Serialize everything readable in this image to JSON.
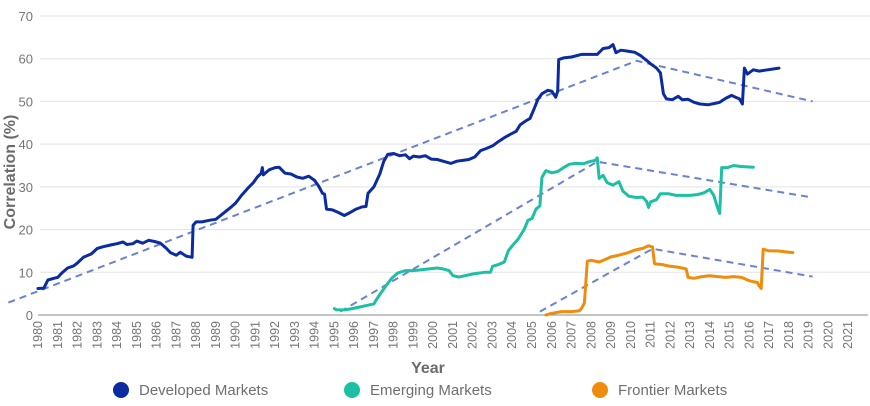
{
  "chart_data": {
    "type": "line",
    "title": "",
    "xlabel": "Year",
    "ylabel": "Correlation (%)",
    "xlim": [
      1980,
      2022
    ],
    "ylim": [
      0,
      70
    ],
    "yticks": [
      0,
      10,
      20,
      30,
      40,
      50,
      60,
      70
    ],
    "xticks": [
      "1980",
      "1981",
      "1982",
      "1983",
      "1984",
      "1985",
      "1986",
      "1987",
      "1988",
      "1989",
      "1990",
      "1991",
      "1992",
      "1993",
      "1994",
      "1995",
      "1996",
      "1997",
      "1998",
      "1999",
      "2000",
      "2001",
      "2002",
      "2003",
      "2004",
      "2005",
      "2006",
      "2007",
      "2008",
      "2009",
      "2010",
      "2011",
      "2012",
      "2013",
      "2014",
      "2015",
      "2016",
      "2017",
      "2018",
      "2019",
      "2020",
      "2021"
    ],
    "grid": true,
    "legend_position": "bottom",
    "series": [
      {
        "name": "Developed Markets",
        "color": "#0b2ba0",
        "points": [
          [
            1980.0,
            6.2
          ],
          [
            1980.3,
            6.3
          ],
          [
            1980.5,
            8.2
          ],
          [
            1980.8,
            8.6
          ],
          [
            1981.0,
            8.8
          ],
          [
            1981.2,
            9.8
          ],
          [
            1981.5,
            11.0
          ],
          [
            1981.8,
            11.5
          ],
          [
            1982.0,
            12.2
          ],
          [
            1982.3,
            13.5
          ],
          [
            1982.7,
            14.3
          ],
          [
            1983.0,
            15.6
          ],
          [
            1983.3,
            16.0
          ],
          [
            1983.7,
            16.4
          ],
          [
            1984.0,
            16.7
          ],
          [
            1984.3,
            17.1
          ],
          [
            1984.5,
            16.5
          ],
          [
            1984.8,
            16.7
          ],
          [
            1985.0,
            17.3
          ],
          [
            1985.3,
            16.8
          ],
          [
            1985.6,
            17.5
          ],
          [
            1985.9,
            17.2
          ],
          [
            1986.2,
            16.8
          ],
          [
            1986.5,
            15.6
          ],
          [
            1986.7,
            14.6
          ],
          [
            1987.0,
            14.0
          ],
          [
            1987.2,
            14.7
          ],
          [
            1987.5,
            13.8
          ],
          [
            1987.8,
            13.5
          ],
          [
            1987.85,
            21.0
          ],
          [
            1988.0,
            21.8
          ],
          [
            1988.3,
            21.8
          ],
          [
            1988.7,
            22.2
          ],
          [
            1989.0,
            22.4
          ],
          [
            1989.3,
            23.5
          ],
          [
            1989.7,
            25.0
          ],
          [
            1990.0,
            26.2
          ],
          [
            1990.3,
            28.0
          ],
          [
            1990.6,
            29.6
          ],
          [
            1990.9,
            31.0
          ],
          [
            1991.1,
            32.3
          ],
          [
            1991.3,
            33.2
          ],
          [
            1991.35,
            34.5
          ],
          [
            1991.4,
            32.8
          ],
          [
            1991.7,
            34.0
          ],
          [
            1992.0,
            34.5
          ],
          [
            1992.2,
            34.6
          ],
          [
            1992.5,
            33.2
          ],
          [
            1992.8,
            33.0
          ],
          [
            1993.1,
            32.3
          ],
          [
            1993.4,
            32.0
          ],
          [
            1993.7,
            32.5
          ],
          [
            1994.0,
            31.5
          ],
          [
            1994.2,
            30.2
          ],
          [
            1994.4,
            28.5
          ],
          [
            1994.5,
            28.3
          ],
          [
            1994.6,
            24.8
          ],
          [
            1994.9,
            24.6
          ],
          [
            1995.2,
            24.0
          ],
          [
            1995.5,
            23.3
          ],
          [
            1995.8,
            24.0
          ],
          [
            1996.1,
            24.8
          ],
          [
            1996.4,
            25.3
          ],
          [
            1996.6,
            25.4
          ],
          [
            1996.7,
            28.5
          ],
          [
            1997.0,
            30.0
          ],
          [
            1997.3,
            33.0
          ],
          [
            1997.5,
            36.0
          ],
          [
            1997.7,
            37.6
          ],
          [
            1998.0,
            37.8
          ],
          [
            1998.3,
            37.3
          ],
          [
            1998.6,
            37.5
          ],
          [
            1998.8,
            36.6
          ],
          [
            1999.0,
            37.2
          ],
          [
            1999.3,
            37.0
          ],
          [
            1999.6,
            37.3
          ],
          [
            1999.9,
            36.5
          ],
          [
            2000.2,
            36.4
          ],
          [
            2000.5,
            36.0
          ],
          [
            2000.9,
            35.5
          ],
          [
            2001.2,
            36.0
          ],
          [
            2001.5,
            36.2
          ],
          [
            2001.8,
            36.4
          ],
          [
            2002.1,
            37.0
          ],
          [
            2002.4,
            38.5
          ],
          [
            2002.7,
            39.0
          ],
          [
            2003.0,
            39.6
          ],
          [
            2003.3,
            40.6
          ],
          [
            2003.6,
            41.5
          ],
          [
            2003.9,
            42.3
          ],
          [
            2004.2,
            43.0
          ],
          [
            2004.4,
            44.5
          ],
          [
            2004.7,
            45.5
          ],
          [
            2004.9,
            46.0
          ],
          [
            2005.1,
            48.2
          ],
          [
            2005.3,
            50.5
          ],
          [
            2005.5,
            51.8
          ],
          [
            2005.8,
            52.6
          ],
          [
            2006.0,
            52.4
          ],
          [
            2006.2,
            51.0
          ],
          [
            2006.3,
            52.4
          ],
          [
            2006.35,
            59.8
          ],
          [
            2006.6,
            60.2
          ],
          [
            2007.0,
            60.4
          ],
          [
            2007.5,
            61.0
          ],
          [
            2008.0,
            61.0
          ],
          [
            2008.3,
            61.0
          ],
          [
            2008.6,
            62.4
          ],
          [
            2008.9,
            62.6
          ],
          [
            2009.1,
            63.3
          ],
          [
            2009.25,
            61.4
          ],
          [
            2009.5,
            62.0
          ],
          [
            2009.8,
            61.8
          ],
          [
            2010.2,
            61.5
          ],
          [
            2010.5,
            60.7
          ],
          [
            2010.8,
            59.6
          ],
          [
            2011.0,
            58.8
          ],
          [
            2011.3,
            57.8
          ],
          [
            2011.5,
            56.7
          ],
          [
            2011.65,
            51.8
          ],
          [
            2011.8,
            50.6
          ],
          [
            2012.1,
            50.4
          ],
          [
            2012.4,
            51.2
          ],
          [
            2012.6,
            50.4
          ],
          [
            2012.9,
            50.5
          ],
          [
            2013.2,
            49.8
          ],
          [
            2013.5,
            49.4
          ],
          [
            2013.9,
            49.2
          ],
          [
            2014.2,
            49.5
          ],
          [
            2014.5,
            49.8
          ],
          [
            2014.8,
            50.7
          ],
          [
            2015.1,
            51.4
          ],
          [
            2015.3,
            51.0
          ],
          [
            2015.5,
            50.6
          ],
          [
            2015.65,
            49.4
          ],
          [
            2015.75,
            57.8
          ],
          [
            2015.9,
            56.4
          ],
          [
            2016.2,
            57.4
          ],
          [
            2016.5,
            57.1
          ],
          [
            2016.8,
            57.3
          ],
          [
            2017.2,
            57.6
          ],
          [
            2017.5,
            57.8
          ]
        ]
      },
      {
        "name": "Emerging Markets",
        "color": "#1dbfa5",
        "points": [
          [
            1995.0,
            1.5
          ],
          [
            1995.1,
            1.2
          ],
          [
            1995.5,
            1.2
          ],
          [
            1995.9,
            1.5
          ],
          [
            1996.3,
            1.9
          ],
          [
            1996.7,
            2.3
          ],
          [
            1997.0,
            2.6
          ],
          [
            1997.1,
            3.4
          ],
          [
            1997.3,
            4.8
          ],
          [
            1997.6,
            6.8
          ],
          [
            1997.9,
            8.6
          ],
          [
            1998.2,
            9.8
          ],
          [
            1998.6,
            10.4
          ],
          [
            1999.0,
            10.4
          ],
          [
            1999.4,
            10.6
          ],
          [
            1999.8,
            10.8
          ],
          [
            2000.2,
            11.0
          ],
          [
            2000.5,
            10.8
          ],
          [
            2000.8,
            10.4
          ],
          [
            2001.0,
            9.2
          ],
          [
            2001.3,
            8.9
          ],
          [
            2001.7,
            9.3
          ],
          [
            2002.0,
            9.6
          ],
          [
            2002.3,
            9.8
          ],
          [
            2002.6,
            10.0
          ],
          [
            2002.9,
            10.0
          ],
          [
            2003.0,
            11.4
          ],
          [
            2003.3,
            11.8
          ],
          [
            2003.6,
            12.4
          ],
          [
            2003.8,
            15.0
          ],
          [
            2004.0,
            16.2
          ],
          [
            2004.3,
            17.8
          ],
          [
            2004.6,
            20.0
          ],
          [
            2004.8,
            22.2
          ],
          [
            2005.0,
            22.6
          ],
          [
            2005.2,
            24.8
          ],
          [
            2005.4,
            25.6
          ],
          [
            2005.5,
            32.2
          ],
          [
            2005.7,
            33.8
          ],
          [
            2006.0,
            33.3
          ],
          [
            2006.3,
            33.6
          ],
          [
            2006.6,
            34.5
          ],
          [
            2006.9,
            35.3
          ],
          [
            2007.2,
            35.5
          ],
          [
            2007.6,
            35.4
          ],
          [
            2007.9,
            35.9
          ],
          [
            2008.2,
            36.2
          ],
          [
            2008.3,
            36.8
          ],
          [
            2008.4,
            32.0
          ],
          [
            2008.6,
            32.7
          ],
          [
            2008.8,
            31.0
          ],
          [
            2009.1,
            30.4
          ],
          [
            2009.4,
            31.2
          ],
          [
            2009.6,
            29.0
          ],
          [
            2009.9,
            27.8
          ],
          [
            2010.3,
            27.5
          ],
          [
            2010.6,
            27.6
          ],
          [
            2010.8,
            26.6
          ],
          [
            2010.9,
            25.2
          ],
          [
            2011.0,
            26.5
          ],
          [
            2011.3,
            27.0
          ],
          [
            2011.5,
            28.4
          ],
          [
            2011.9,
            28.4
          ],
          [
            2012.3,
            28.0
          ],
          [
            2012.7,
            28.0
          ],
          [
            2013.0,
            28.0
          ],
          [
            2013.4,
            28.2
          ],
          [
            2013.7,
            28.6
          ],
          [
            2014.0,
            29.4
          ],
          [
            2014.2,
            28.0
          ],
          [
            2014.4,
            25.0
          ],
          [
            2014.5,
            23.8
          ],
          [
            2014.6,
            34.5
          ],
          [
            2014.9,
            34.5
          ],
          [
            2015.2,
            35.0
          ],
          [
            2015.5,
            34.8
          ],
          [
            2015.8,
            34.7
          ],
          [
            2016.2,
            34.6
          ]
        ]
      },
      {
        "name": "Frontier Markets",
        "color": "#f08c0c",
        "points": [
          [
            2005.7,
            0.0
          ],
          [
            2006.0,
            0.4
          ],
          [
            2006.5,
            0.8
          ],
          [
            2007.0,
            0.8
          ],
          [
            2007.4,
            1.0
          ],
          [
            2007.5,
            1.5
          ],
          [
            2007.65,
            2.8
          ],
          [
            2007.8,
            12.6
          ],
          [
            2008.0,
            12.8
          ],
          [
            2008.4,
            12.4
          ],
          [
            2008.7,
            13.0
          ],
          [
            2009.0,
            13.6
          ],
          [
            2009.4,
            14.0
          ],
          [
            2009.8,
            14.5
          ],
          [
            2010.2,
            15.2
          ],
          [
            2010.6,
            15.6
          ],
          [
            2010.9,
            16.2
          ],
          [
            2011.1,
            15.9
          ],
          [
            2011.2,
            12.0
          ],
          [
            2011.6,
            11.8
          ],
          [
            2012.0,
            11.4
          ],
          [
            2012.4,
            11.2
          ],
          [
            2012.8,
            10.8
          ],
          [
            2012.9,
            8.8
          ],
          [
            2013.2,
            8.6
          ],
          [
            2013.6,
            9.0
          ],
          [
            2014.0,
            9.2
          ],
          [
            2014.4,
            9.0
          ],
          [
            2014.8,
            8.8
          ],
          [
            2015.2,
            9.0
          ],
          [
            2015.6,
            8.8
          ],
          [
            2016.0,
            8.0
          ],
          [
            2016.4,
            7.6
          ],
          [
            2016.5,
            6.8
          ],
          [
            2016.6,
            6.2
          ],
          [
            2016.7,
            15.4
          ],
          [
            2017.0,
            15.0
          ],
          [
            2017.4,
            15.0
          ],
          [
            2017.8,
            14.8
          ],
          [
            2018.2,
            14.6
          ]
        ]
      }
    ],
    "trend_lines": [
      {
        "name": "Developed Markets trend",
        "color": "#6b82cc",
        "points": [
          [
            1978.5,
            2.9
          ],
          [
            2010.3,
            59.5
          ],
          [
            2019.2,
            50.0
          ]
        ]
      },
      {
        "name": "Emerging Markets trend",
        "color": "#6b82cc",
        "points": [
          [
            1995.3,
            0.8
          ],
          [
            2008.3,
            35.9
          ],
          [
            2019.2,
            27.5
          ]
        ]
      },
      {
        "name": "Frontier Markets trend",
        "color": "#6b82cc",
        "points": [
          [
            2005.4,
            0.8
          ],
          [
            2011.1,
            15.5
          ],
          [
            2019.2,
            9.0
          ]
        ]
      }
    ]
  }
}
